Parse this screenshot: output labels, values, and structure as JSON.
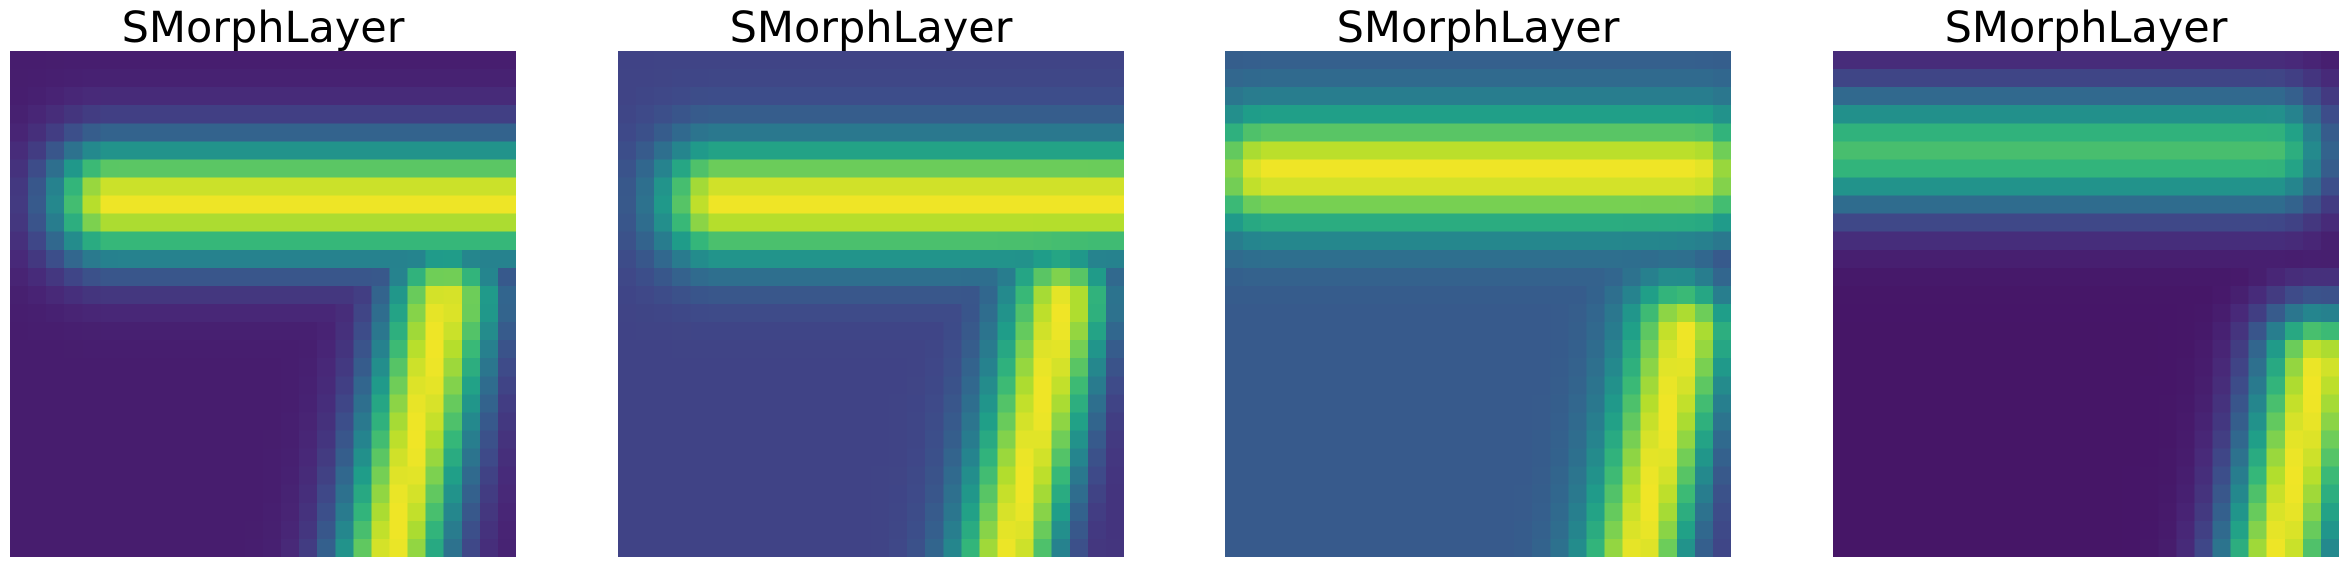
{
  "colormap": "viridis",
  "panels": [
    {
      "title": "SMorphLayer",
      "background": "#482677",
      "stroke_style": "plain"
    },
    {
      "title": "SMorphLayer",
      "background": "#3b4f8a",
      "stroke_style": "shadowed"
    },
    {
      "title": "SMorphLayer",
      "background": "#3a5f8f",
      "stroke_style": "shifted"
    },
    {
      "title": "SMorphLayer",
      "background": "#430e60",
      "stroke_style": "edge"
    }
  ]
}
